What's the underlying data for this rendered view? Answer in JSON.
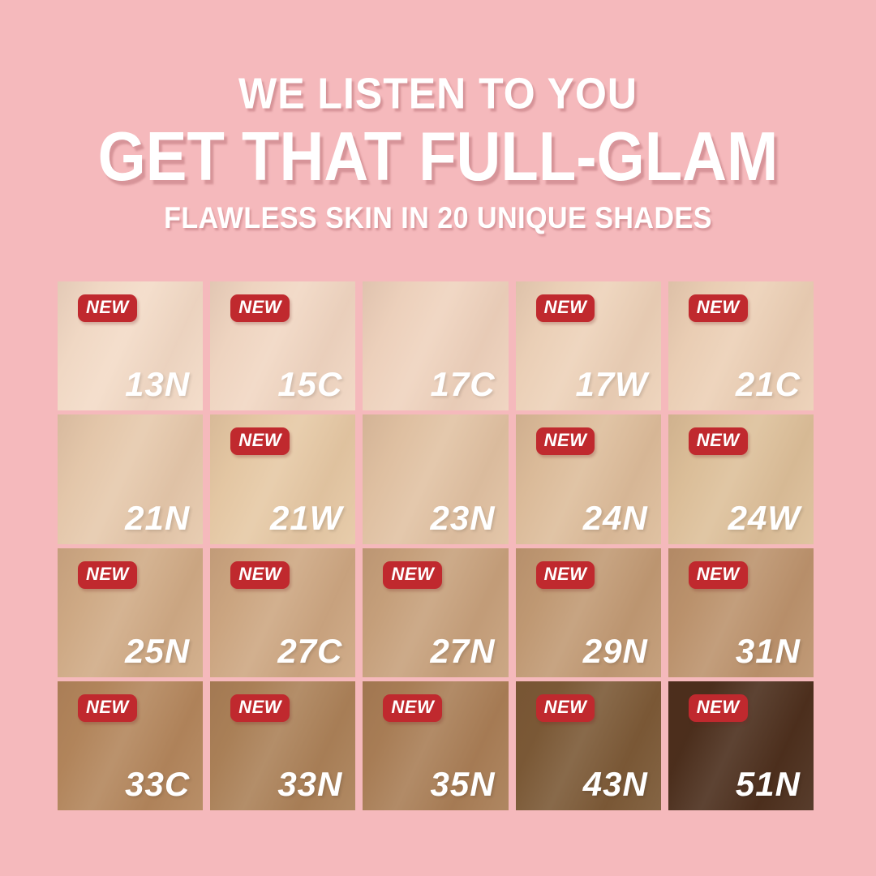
{
  "page": {
    "background": "#F5B9BC"
  },
  "header": {
    "line1": "WE LISTEN TO YOU",
    "line2": "GET THAT FULL-GLAM",
    "line3": "FLAWLESS SKIN IN 20 UNIQUE SHADES",
    "text_color": "#FFFFFF"
  },
  "grid": {
    "columns": 5,
    "rows": 4,
    "new_badge_label": "NEW",
    "badge_color": "#C0292E",
    "swatches": [
      {
        "code": "13N",
        "color": "#F3DBC7",
        "new": true
      },
      {
        "code": "15C",
        "color": "#F1D7C3",
        "new": true
      },
      {
        "code": "17C",
        "color": "#EFD3BE",
        "new": false
      },
      {
        "code": "17W",
        "color": "#EDD2B9",
        "new": true
      },
      {
        "code": "21C",
        "color": "#ECD0B6",
        "new": true
      },
      {
        "code": "21N",
        "color": "#E6C9AC",
        "new": false
      },
      {
        "code": "21W",
        "color": "#E6C9A5",
        "new": true
      },
      {
        "code": "23N",
        "color": "#E1C2A3",
        "new": false
      },
      {
        "code": "24N",
        "color": "#DDBD9B",
        "new": true
      },
      {
        "code": "24W",
        "color": "#DDC09A",
        "new": true
      },
      {
        "code": "25N",
        "color": "#D0AB86",
        "new": true
      },
      {
        "code": "27C",
        "color": "#CDA782",
        "new": true
      },
      {
        "code": "27N",
        "color": "#C7A17C",
        "new": true
      },
      {
        "code": "29N",
        "color": "#C19A74",
        "new": true
      },
      {
        "code": "31N",
        "color": "#BC936D",
        "new": true
      },
      {
        "code": "33C",
        "color": "#B3865C",
        "new": true
      },
      {
        "code": "33N",
        "color": "#AB8158",
        "new": true
      },
      {
        "code": "35N",
        "color": "#A97E56",
        "new": true
      },
      {
        "code": "43N",
        "color": "#7B5936",
        "new": true
      },
      {
        "code": "51N",
        "color": "#4B2E1C",
        "new": true
      }
    ]
  }
}
